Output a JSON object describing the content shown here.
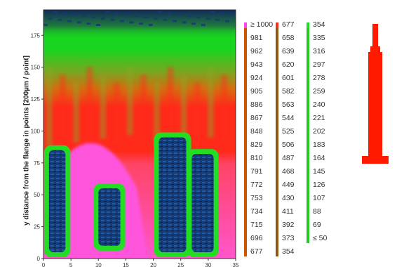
{
  "chart_data": {
    "type": "heatmap",
    "ylabel": "y distance from the flange in points [200µm / point]",
    "xlabel": "",
    "xlim": [
      0,
      35
    ],
    "ylim": [
      0,
      195
    ],
    "x_ticks": [
      "0",
      "5",
      "10",
      "15",
      "20",
      "25",
      "30",
      "35"
    ],
    "y_ticks": [
      "0",
      "25",
      "50",
      "75",
      "100",
      "125",
      "150",
      "175"
    ],
    "color_scale": {
      "columns": [
        {
          "bar_color": "#cc5500",
          "swatch_color": "#ff44ee",
          "labels": [
            "≥ 1000",
            "981",
            "962",
            "943",
            "924",
            "905",
            "886",
            "867",
            "848",
            "829",
            "810",
            "791",
            "772",
            "753",
            "734",
            "715",
            "696",
            "677"
          ]
        },
        {
          "bar_color": "#8b5a10",
          "swatch_color": "#ff2a1a",
          "labels": [
            "677",
            "658",
            "639",
            "620",
            "601",
            "582",
            "563",
            "544",
            "525",
            "506",
            "487",
            "468",
            "449",
            "430",
            "411",
            "392",
            "373",
            "354"
          ]
        },
        {
          "bar_color": "#22cc22",
          "swatch_color": "#22dd22",
          "labels": [
            "354",
            "335",
            "316",
            "297",
            "278",
            "259",
            "240",
            "221",
            "202",
            "183",
            "164",
            "145",
            "126",
            "107",
            "88",
            "69",
            "≤ 50"
          ]
        }
      ]
    },
    "regions": {
      "low_blue_band_top_y": [
        180,
        195
      ],
      "red_band_y": [
        88,
        150
      ],
      "magenta_zone_x": [
        4,
        17
      ],
      "blue_cores": [
        {
          "x": [
            1,
            4
          ],
          "y": [
            5,
            85
          ]
        },
        {
          "x": [
            10,
            14
          ],
          "y": [
            10,
            55
          ]
        },
        {
          "x": [
            21,
            26
          ],
          "y": [
            5,
            95
          ]
        },
        {
          "x": [
            27,
            31
          ],
          "y": [
            5,
            82
          ]
        }
      ]
    }
  },
  "mold_icon": {
    "color": "#ff1a00"
  }
}
